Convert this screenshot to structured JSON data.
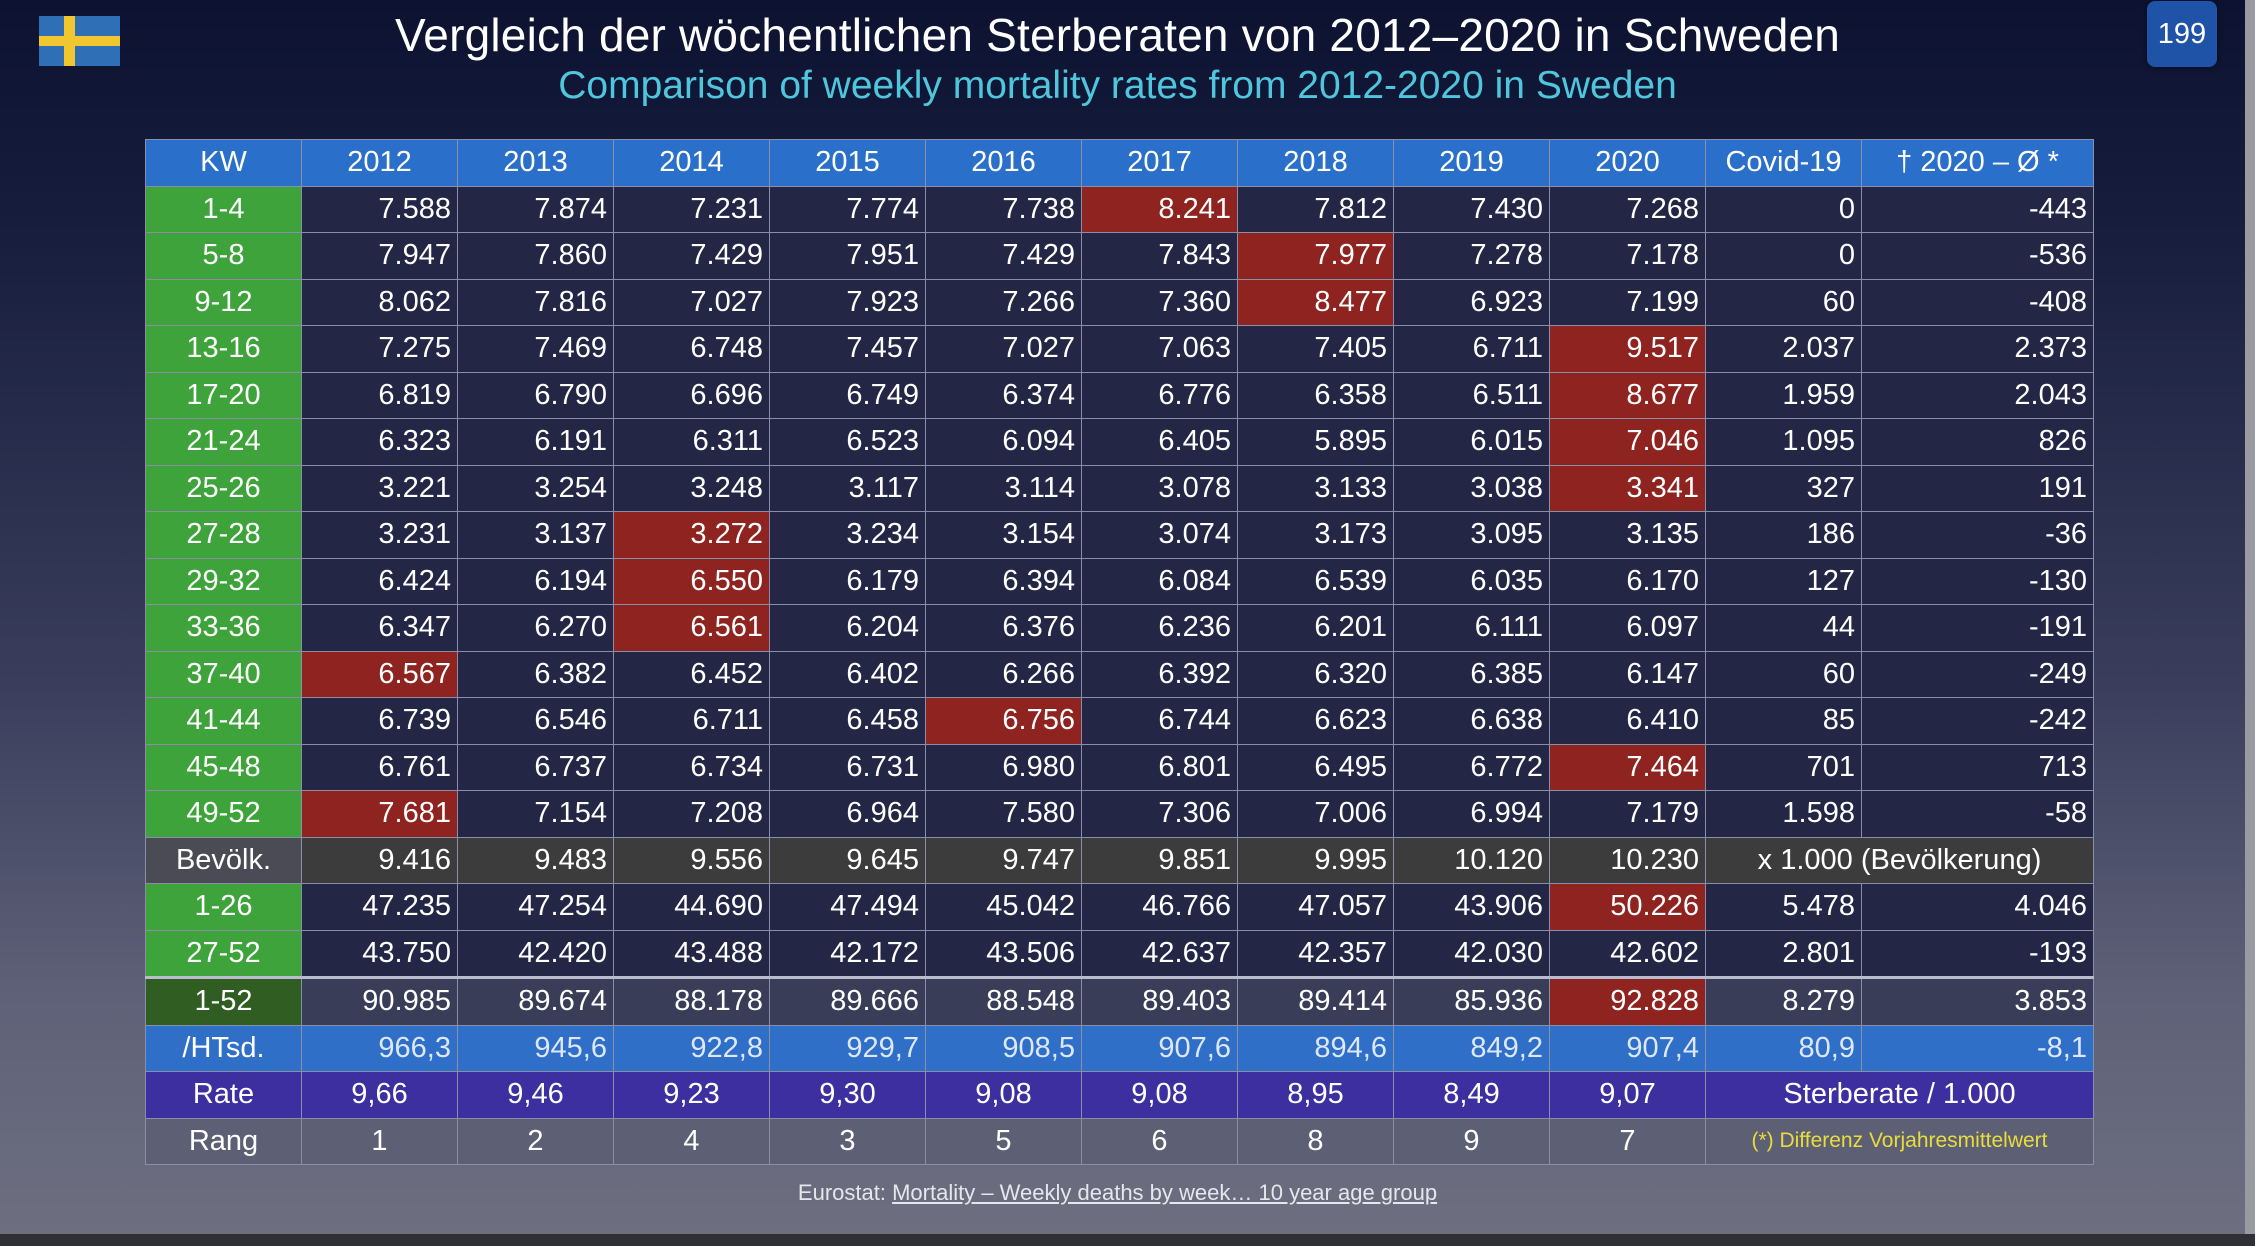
{
  "header": {
    "title_de": "Vergleich der wöchentlichen Sterberaten von 2012–2020 in Schweden",
    "title_en": "Comparison of weekly mortality rates from 2012-2020 in Sweden",
    "page_number": "199",
    "flag_icon": "sweden-flag-icon"
  },
  "table": {
    "headers": [
      "KW",
      "2012",
      "2013",
      "2014",
      "2015",
      "2016",
      "2017",
      "2018",
      "2019",
      "2020",
      "Covid-19",
      "† 2020 – Ø *"
    ],
    "weekly_rows": [
      {
        "label": "1-4",
        "cells": [
          "7.588",
          "7.874",
          "7.231",
          "7.774",
          "7.738",
          "8.241",
          "7.812",
          "7.430",
          "7.268",
          "0",
          "-443"
        ],
        "highlight": [
          5
        ]
      },
      {
        "label": "5-8",
        "cells": [
          "7.947",
          "7.860",
          "7.429",
          "7.951",
          "7.429",
          "7.843",
          "7.977",
          "7.278",
          "7.178",
          "0",
          "-536"
        ],
        "highlight": [
          6
        ]
      },
      {
        "label": "9-12",
        "cells": [
          "8.062",
          "7.816",
          "7.027",
          "7.923",
          "7.266",
          "7.360",
          "8.477",
          "6.923",
          "7.199",
          "60",
          "-408"
        ],
        "highlight": [
          6
        ]
      },
      {
        "label": "13-16",
        "cells": [
          "7.275",
          "7.469",
          "6.748",
          "7.457",
          "7.027",
          "7.063",
          "7.405",
          "6.711",
          "9.517",
          "2.037",
          "2.373"
        ],
        "highlight": [
          8
        ]
      },
      {
        "label": "17-20",
        "cells": [
          "6.819",
          "6.790",
          "6.696",
          "6.749",
          "6.374",
          "6.776",
          "6.358",
          "6.511",
          "8.677",
          "1.959",
          "2.043"
        ],
        "highlight": [
          8
        ]
      },
      {
        "label": "21-24",
        "cells": [
          "6.323",
          "6.191",
          "6.311",
          "6.523",
          "6.094",
          "6.405",
          "5.895",
          "6.015",
          "7.046",
          "1.095",
          "826"
        ],
        "highlight": [
          8
        ]
      },
      {
        "label": "25-26",
        "cells": [
          "3.221",
          "3.254",
          "3.248",
          "3.117",
          "3.114",
          "3.078",
          "3.133",
          "3.038",
          "3.341",
          "327",
          "191"
        ],
        "highlight": [
          8
        ]
      },
      {
        "label": "27-28",
        "cells": [
          "3.231",
          "3.137",
          "3.272",
          "3.234",
          "3.154",
          "3.074",
          "3.173",
          "3.095",
          "3.135",
          "186",
          "-36"
        ],
        "highlight": [
          2
        ]
      },
      {
        "label": "29-32",
        "cells": [
          "6.424",
          "6.194",
          "6.550",
          "6.179",
          "6.394",
          "6.084",
          "6.539",
          "6.035",
          "6.170",
          "127",
          "-130"
        ],
        "highlight": [
          2
        ]
      },
      {
        "label": "33-36",
        "cells": [
          "6.347",
          "6.270",
          "6.561",
          "6.204",
          "6.376",
          "6.236",
          "6.201",
          "6.111",
          "6.097",
          "44",
          "-191"
        ],
        "highlight": [
          2
        ]
      },
      {
        "label": "37-40",
        "cells": [
          "6.567",
          "6.382",
          "6.452",
          "6.402",
          "6.266",
          "6.392",
          "6.320",
          "6.385",
          "6.147",
          "60",
          "-249"
        ],
        "highlight": [
          0
        ]
      },
      {
        "label": "41-44",
        "cells": [
          "6.739",
          "6.546",
          "6.711",
          "6.458",
          "6.756",
          "6.744",
          "6.623",
          "6.638",
          "6.410",
          "85",
          "-242"
        ],
        "highlight": [
          4
        ]
      },
      {
        "label": "45-48",
        "cells": [
          "6.761",
          "6.737",
          "6.734",
          "6.731",
          "6.980",
          "6.801",
          "6.495",
          "6.772",
          "7.464",
          "701",
          "713"
        ],
        "highlight": [
          8
        ]
      },
      {
        "label": "49-52",
        "cells": [
          "7.681",
          "7.154",
          "7.208",
          "6.964",
          "7.580",
          "7.306",
          "7.006",
          "6.994",
          "7.179",
          "1.598",
          "-58"
        ],
        "highlight": [
          0
        ]
      }
    ],
    "population_row": {
      "label": "Bevölk.",
      "cells": [
        "9.416",
        "9.483",
        "9.556",
        "9.645",
        "9.747",
        "9.851",
        "9.995",
        "10.120",
        "10.230"
      ],
      "note": "x 1.000 (Bevölkerung)"
    },
    "half_rows": [
      {
        "label": "1-26",
        "cells": [
          "47.235",
          "47.254",
          "44.690",
          "47.494",
          "45.042",
          "46.766",
          "47.057",
          "43.906",
          "50.226",
          "5.478",
          "4.046"
        ],
        "highlight": [
          8
        ]
      },
      {
        "label": "27-52",
        "cells": [
          "43.750",
          "42.420",
          "43.488",
          "42.172",
          "43.506",
          "42.637",
          "42.357",
          "42.030",
          "42.602",
          "2.801",
          "-193"
        ],
        "highlight": []
      }
    ],
    "total_row": {
      "label": "1-52",
      "cells": [
        "90.985",
        "89.674",
        "88.178",
        "89.666",
        "88.548",
        "89.403",
        "89.414",
        "85.936",
        "92.828",
        "8.279",
        "3.853"
      ],
      "highlight": [
        8
      ]
    },
    "per_thousand_row": {
      "label": "/HTsd.",
      "cells": [
        "966,3",
        "945,6",
        "922,8",
        "929,7",
        "908,5",
        "907,6",
        "894,6",
        "849,2",
        "907,4",
        "80,9",
        "-8,1"
      ]
    },
    "rate_row": {
      "label": "Rate",
      "cells": [
        "9,66",
        "9,46",
        "9,23",
        "9,30",
        "9,08",
        "9,08",
        "8,95",
        "8,49",
        "9,07"
      ],
      "note": "Sterberate / 1.000"
    },
    "rank_row": {
      "label": "Rang",
      "cells": [
        "1",
        "2",
        "4",
        "3",
        "5",
        "6",
        "8",
        "9",
        "7"
      ],
      "note": "(*) Differenz Vorjahresmittelwert"
    }
  },
  "source": {
    "prefix": "Eurostat: ",
    "link_text": "Mortality – Weekly deaths by week… 10 year age group"
  }
}
